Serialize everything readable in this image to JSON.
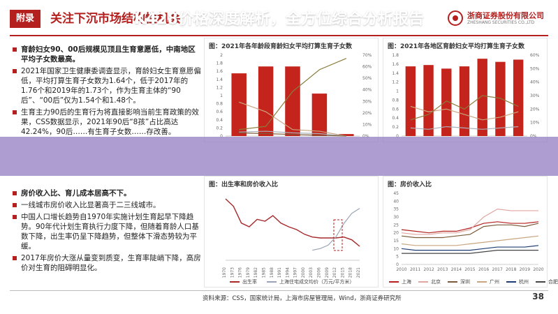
{
  "header": {
    "tag": "附录",
    "title": "关注下沉市场结构性机会",
    "logo_cn": "浙商证券股份有限公司",
    "logo_en": "ZHESHANG SECURITIES CO.,LTD",
    "accent": "#b3201e"
  },
  "left": {
    "section1": [
      {
        "text": "育龄妇女90、00后规模见顶且生育意愿低，中南地区平均子女数最高。",
        "bold": true
      },
      {
        "text": "2021年国家卫生健康委调查显示，育龄妇女生育意愿偏低，平均打算生育子女数为1.64个，低于2017年的1.76个和2019年的1.73个，作为生育主体的“90后”、“00后”仅为1.54个和1.48个。",
        "bold": false
      },
      {
        "text": "生育主力90后的生育行为将直接影响当前生育政策的效果，CSS数据显示，2021年90后“8孩”占比高达42.24%，90后……有生育子女数……存改善。",
        "bold": false
      }
    ],
    "section2": [
      {
        "text": "房价收入比、育儿成本居高不下。",
        "bold": true
      },
      {
        "text": "一线城市房价收入比显著高于二三线城市。",
        "bold": false
      },
      {
        "text": "中国人口增长趋势自1970年实施计划生育起早下降趋势。90年代计划生育执行力度下降，但随着育龄人口基数下降，出生率仍呈下降趋势，但整体下滑态势较为平缓。",
        "bold": false
      },
      {
        "text": "2017年房价大涨从量变到质变，生育率陡峭下降，高房价对生育的阻碍明显化。",
        "bold": false
      }
    ]
  },
  "overlay": {
    "text": "K428价格深度解析，全方位综合分析报告",
    "color": "#9682c3"
  },
  "charts": {
    "c1": {
      "title": "图：2021年各年龄段育龄妇女平均打算生育子女数",
      "bars": [
        1.55,
        1.72,
        1.72,
        1.05,
        0.05
      ],
      "y_ticks": [
        "0",
        "0.2",
        "0.4",
        "0.6",
        "0.8",
        "1",
        "1.2",
        "1.4",
        "1.6",
        "1.8",
        "2"
      ],
      "y2_ticks": [
        "0%",
        "10%",
        "20%",
        "30%",
        "40%",
        "50%",
        "60%",
        "70%"
      ]
    },
    "c2": {
      "title": "图：2021年各地区育龄妇女平均打算生育子女数",
      "bars": [
        1.55,
        1.58,
        1.5,
        1.55,
        1.72,
        1.65,
        1.7
      ],
      "y_ticks": [
        "0",
        "0.2",
        "0.4",
        "0.6",
        "0.8",
        "1",
        "1.2",
        "1.4",
        "1.6",
        "1.8"
      ],
      "y2_ticks": [
        "0%",
        "10%",
        "20%",
        "30%",
        "40%",
        "50%",
        "60%"
      ]
    },
    "c3": {
      "title": "图：出生率和房价收入比",
      "legend": [
        "出生率",
        "上海住宅成交均价（万元/平方米）"
      ],
      "x_ticks": [
        "1970",
        "1973",
        "1976",
        "1979",
        "1982",
        "1985",
        "1988",
        "1991",
        "1994",
        "1997",
        "2000",
        "2003",
        "2006",
        "2009",
        "2012",
        "2015",
        "2018",
        "2021"
      ]
    },
    "c4": {
      "title": "图：房价收入比",
      "legend": [
        "上海",
        "北京",
        "深圳",
        "广州",
        "杭州",
        "合肥"
      ],
      "x_ticks": [
        "2010",
        "2011",
        "2012",
        "2013",
        "2014",
        "2015",
        "2016",
        "2017",
        "2018",
        "2019",
        "2020"
      ],
      "y_ticks": [
        "0",
        "5",
        "10",
        "15",
        "20",
        "25",
        "30",
        "35",
        "40",
        "45"
      ]
    }
  },
  "footer": {
    "source": "资料来源：CSS，国家统计局，上海市房屋管理局，Wind，浙商证券研究所",
    "page": "38"
  }
}
